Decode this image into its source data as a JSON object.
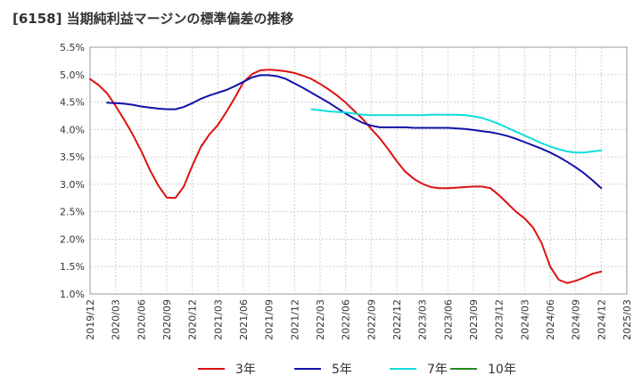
{
  "chart_data": {
    "type": "line",
    "title": "[6158]  当期純利益マージンの標準偏差の推移",
    "xlabel": "",
    "ylabel": "",
    "ylim": [
      1.0,
      5.5
    ],
    "yticks": [
      "1.0%",
      "1.5%",
      "2.0%",
      "2.5%",
      "3.0%",
      "3.5%",
      "4.0%",
      "4.5%",
      "5.0%",
      "5.5%"
    ],
    "xticks": [
      "2019/12",
      "2020/03",
      "2020/06",
      "2020/09",
      "2020/12",
      "2021/03",
      "2021/06",
      "2021/09",
      "2021/12",
      "2022/03",
      "2022/06",
      "2022/09",
      "2022/12",
      "2023/03",
      "2023/06",
      "2023/09",
      "2023/12",
      "2024/03",
      "2024/06",
      "2024/09",
      "2024/12",
      "2025/03"
    ],
    "grid": true,
    "legend_position": "bottom",
    "series": [
      {
        "name": "3年",
        "color": "#dd1111",
        "points": [
          [
            "2019/12",
            4.92
          ],
          [
            "2020/01",
            4.81
          ],
          [
            "2020/02",
            4.66
          ],
          [
            "2020/03",
            4.43
          ],
          [
            "2020/04",
            4.18
          ],
          [
            "2020/05",
            3.91
          ],
          [
            "2020/06",
            3.61
          ],
          [
            "2020/07",
            3.27
          ],
          [
            "2020/08",
            2.98
          ],
          [
            "2020/09",
            2.76
          ],
          [
            "2020/10",
            2.75
          ],
          [
            "2020/11",
            2.96
          ],
          [
            "2020/12",
            3.34
          ],
          [
            "2021/01",
            3.68
          ],
          [
            "2021/02",
            3.91
          ],
          [
            "2021/03",
            4.08
          ],
          [
            "2021/04",
            4.32
          ],
          [
            "2021/05",
            4.58
          ],
          [
            "2021/06",
            4.86
          ],
          [
            "2021/07",
            5.01
          ],
          [
            "2021/08",
            5.08
          ],
          [
            "2021/09",
            5.09
          ],
          [
            "2021/10",
            5.08
          ],
          [
            "2021/11",
            5.06
          ],
          [
            "2021/12",
            5.03
          ],
          [
            "2022/01",
            4.98
          ],
          [
            "2022/02",
            4.92
          ],
          [
            "2022/03",
            4.83
          ],
          [
            "2022/04",
            4.73
          ],
          [
            "2022/05",
            4.62
          ],
          [
            "2022/06",
            4.49
          ],
          [
            "2022/07",
            4.34
          ],
          [
            "2022/08",
            4.19
          ],
          [
            "2022/09",
            4.01
          ],
          [
            "2022/10",
            3.84
          ],
          [
            "2022/11",
            3.64
          ],
          [
            "2022/12",
            3.42
          ],
          [
            "2023/01",
            3.23
          ],
          [
            "2023/02",
            3.1
          ],
          [
            "2023/03",
            3.01
          ],
          [
            "2023/04",
            2.95
          ],
          [
            "2023/05",
            2.93
          ],
          [
            "2023/06",
            2.93
          ],
          [
            "2023/07",
            2.94
          ],
          [
            "2023/08",
            2.95
          ],
          [
            "2023/09",
            2.96
          ],
          [
            "2023/10",
            2.96
          ],
          [
            "2023/11",
            2.93
          ],
          [
            "2023/12",
            2.8
          ],
          [
            "2024/01",
            2.65
          ],
          [
            "2024/02",
            2.5
          ],
          [
            "2024/03",
            2.38
          ],
          [
            "2024/04",
            2.21
          ],
          [
            "2024/05",
            1.93
          ],
          [
            "2024/06",
            1.5
          ],
          [
            "2024/07",
            1.26
          ],
          [
            "2024/08",
            1.2
          ],
          [
            "2024/09",
            1.24
          ],
          [
            "2024/10",
            1.3
          ],
          [
            "2024/11",
            1.37
          ],
          [
            "2024/12",
            1.41
          ]
        ]
      },
      {
        "name": "5年",
        "color": "#1111aa",
        "points": [
          [
            "2020/02",
            4.49
          ],
          [
            "2020/03",
            4.48
          ],
          [
            "2020/04",
            4.47
          ],
          [
            "2020/05",
            4.45
          ],
          [
            "2020/06",
            4.42
          ],
          [
            "2020/07",
            4.4
          ],
          [
            "2020/08",
            4.38
          ],
          [
            "2020/09",
            4.37
          ],
          [
            "2020/10",
            4.37
          ],
          [
            "2020/11",
            4.41
          ],
          [
            "2020/12",
            4.48
          ],
          [
            "2021/01",
            4.56
          ],
          [
            "2021/02",
            4.62
          ],
          [
            "2021/03",
            4.67
          ],
          [
            "2021/04",
            4.72
          ],
          [
            "2021/05",
            4.79
          ],
          [
            "2021/06",
            4.87
          ],
          [
            "2021/07",
            4.95
          ],
          [
            "2021/08",
            4.99
          ],
          [
            "2021/09",
            4.99
          ],
          [
            "2021/10",
            4.97
          ],
          [
            "2021/11",
            4.92
          ],
          [
            "2021/12",
            4.84
          ],
          [
            "2022/01",
            4.76
          ],
          [
            "2022/02",
            4.67
          ],
          [
            "2022/03",
            4.58
          ],
          [
            "2022/04",
            4.49
          ],
          [
            "2022/05",
            4.39
          ],
          [
            "2022/06",
            4.29
          ],
          [
            "2022/07",
            4.2
          ],
          [
            "2022/08",
            4.12
          ],
          [
            "2022/09",
            4.07
          ],
          [
            "2022/10",
            4.04
          ],
          [
            "2022/11",
            4.04
          ],
          [
            "2022/12",
            4.04
          ],
          [
            "2023/01",
            4.04
          ],
          [
            "2023/02",
            4.03
          ],
          [
            "2023/03",
            4.03
          ],
          [
            "2023/04",
            4.03
          ],
          [
            "2023/05",
            4.03
          ],
          [
            "2023/06",
            4.03
          ],
          [
            "2023/07",
            4.02
          ],
          [
            "2023/08",
            4.01
          ],
          [
            "2023/09",
            3.99
          ],
          [
            "2023/10",
            3.97
          ],
          [
            "2023/11",
            3.95
          ],
          [
            "2023/12",
            3.92
          ],
          [
            "2024/01",
            3.88
          ],
          [
            "2024/02",
            3.83
          ],
          [
            "2024/03",
            3.77
          ],
          [
            "2024/04",
            3.71
          ],
          [
            "2024/05",
            3.65
          ],
          [
            "2024/06",
            3.58
          ],
          [
            "2024/07",
            3.5
          ],
          [
            "2024/08",
            3.41
          ],
          [
            "2024/09",
            3.31
          ],
          [
            "2024/10",
            3.2
          ],
          [
            "2024/11",
            3.07
          ],
          [
            "2024/12",
            2.93
          ]
        ]
      },
      {
        "name": "7年",
        "color": "#11dddd",
        "points": [
          [
            "2022/02",
            4.37
          ],
          [
            "2022/03",
            4.35
          ],
          [
            "2022/04",
            4.33
          ],
          [
            "2022/05",
            4.32
          ],
          [
            "2022/06",
            4.31
          ],
          [
            "2022/07",
            4.29
          ],
          [
            "2022/08",
            4.27
          ],
          [
            "2022/09",
            4.26
          ],
          [
            "2022/10",
            4.26
          ],
          [
            "2022/11",
            4.26
          ],
          [
            "2022/12",
            4.26
          ],
          [
            "2023/01",
            4.26
          ],
          [
            "2023/02",
            4.26
          ],
          [
            "2023/03",
            4.26
          ],
          [
            "2023/04",
            4.27
          ],
          [
            "2023/05",
            4.27
          ],
          [
            "2023/06",
            4.27
          ],
          [
            "2023/07",
            4.27
          ],
          [
            "2023/08",
            4.26
          ],
          [
            "2023/09",
            4.24
          ],
          [
            "2023/10",
            4.21
          ],
          [
            "2023/11",
            4.16
          ],
          [
            "2023/12",
            4.1
          ],
          [
            "2024/01",
            4.03
          ],
          [
            "2024/02",
            3.96
          ],
          [
            "2024/03",
            3.89
          ],
          [
            "2024/04",
            3.82
          ],
          [
            "2024/05",
            3.75
          ],
          [
            "2024/06",
            3.69
          ],
          [
            "2024/07",
            3.64
          ],
          [
            "2024/08",
            3.6
          ],
          [
            "2024/09",
            3.58
          ],
          [
            "2024/10",
            3.58
          ],
          [
            "2024/11",
            3.6
          ],
          [
            "2024/12",
            3.62
          ]
        ]
      },
      {
        "name": "10年",
        "color": "#228B22",
        "points": []
      }
    ]
  }
}
